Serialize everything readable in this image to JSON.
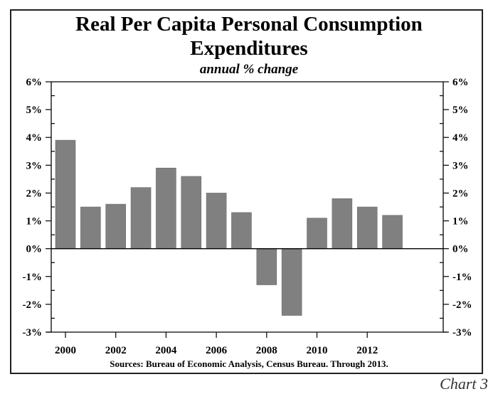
{
  "chart_data": {
    "type": "bar",
    "title": "Real Per Capita Personal Consumption Expenditures",
    "title_line1": "Real Per Capita Personal Consumption",
    "title_line2": "Expenditures",
    "subtitle": "annual % change",
    "xlabel": "",
    "ylabel": "",
    "categories": [
      "2000",
      "2001",
      "2002",
      "2003",
      "2004",
      "2005",
      "2006",
      "2007",
      "2008",
      "2009",
      "2010",
      "2011",
      "2012",
      "2013"
    ],
    "values": [
      3.9,
      1.5,
      1.6,
      2.2,
      2.9,
      2.6,
      2.0,
      1.3,
      -1.3,
      -2.4,
      1.1,
      1.8,
      1.5,
      1.2
    ],
    "ylim": [
      -3,
      6
    ],
    "y_ticks": [
      6,
      5,
      4,
      3,
      2,
      1,
      0,
      -1,
      -2,
      -3
    ],
    "y_tick_labels": [
      "6%",
      "5%",
      "4%",
      "3%",
      "2%",
      "1%",
      "0%",
      "-1%",
      "-2%",
      "-3%"
    ],
    "x_tick_labels": [
      "2000",
      "2002",
      "2004",
      "2006",
      "2008",
      "2010",
      "2012"
    ],
    "x_tick_years": [
      2000,
      2002,
      2004,
      2006,
      2008,
      2010,
      2012
    ],
    "grid": false,
    "legend": "none",
    "bar_color": "#808080",
    "source": "Sources:  Bureau of Economic Analysis, Census Bureau. Through 2013.",
    "chart_number": "Chart 3"
  }
}
